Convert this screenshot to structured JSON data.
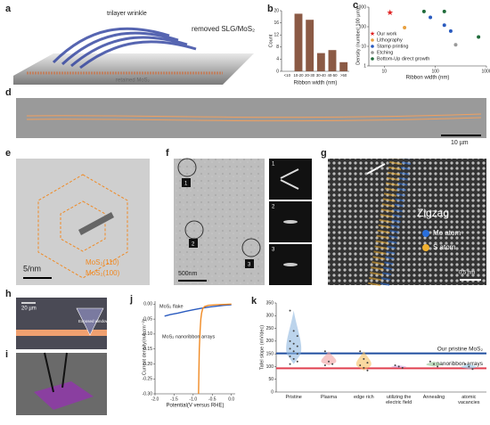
{
  "panels": {
    "a": {
      "label": "a",
      "texts": [
        "trilayer wrinkle",
        "removed SLG/MoS₂",
        "retained MoS₂"
      ]
    },
    "d": {
      "label": "d",
      "scale": "10 µm"
    },
    "e": {
      "label": "e",
      "scale": "5/nm",
      "legend": [
        "MoS₂(110)",
        "MoS₂(100)"
      ]
    },
    "f": {
      "label": "f",
      "scale": "500nm",
      "markers": [
        "1",
        "2",
        "3"
      ],
      "insets": [
        "1",
        "2",
        "3"
      ]
    },
    "g": {
      "label": "g",
      "texts": [
        "Zigzag",
        "Mo atom",
        "S atom"
      ],
      "scale": "0.5 nm"
    },
    "h": {
      "label": "h",
      "scale": "20 µm",
      "window": "Exposed window"
    },
    "i": {
      "label": "i"
    }
  },
  "chart_data": [
    {
      "type": "bar",
      "label": "b",
      "ylabel": "Count",
      "xlabel": "Ribbon width (nm)",
      "categories": [
        "<10",
        "10-20",
        "20-30",
        "30-40",
        "40-50",
        ">50"
      ],
      "values": [
        0,
        19,
        17,
        6,
        7,
        3
      ],
      "color": "#8b5a45",
      "ylim": [
        0,
        20
      ],
      "yticks": [
        0,
        4,
        8,
        12,
        16,
        20
      ]
    },
    {
      "type": "scatter",
      "label": "c",
      "ylabel": "Density (number/ 100 µm)",
      "xlabel": "Ribbon width (nm)",
      "log_x": true,
      "log_y": true,
      "xlim": [
        5,
        1000
      ],
      "ylim": [
        1,
        1000
      ],
      "xticks": [
        10,
        100,
        1000
      ],
      "yticks": [
        1,
        10,
        100,
        1000
      ],
      "legend": "left",
      "series": [
        {
          "name": "Our work",
          "color": "#e02020",
          "marker": "star",
          "x": [
            13
          ],
          "values": [
            500
          ]
        },
        {
          "name": "Lithography",
          "color": "#e8a040",
          "marker": "circle",
          "x": [
            25
          ],
          "values": [
            90
          ]
        },
        {
          "name": "Stamp printing",
          "color": "#2a5bbf",
          "marker": "circle",
          "x": [
            80,
            150,
            200
          ],
          "values": [
            300,
            120,
            60
          ]
        },
        {
          "name": "Etching",
          "color": "#999999",
          "marker": "circle",
          "x": [
            250
          ],
          "values": [
            12
          ]
        },
        {
          "name": "Bottom-Up direct growth",
          "color": "#1f6b3a",
          "marker": "circle",
          "x": [
            60,
            150,
            700
          ],
          "values": [
            600,
            600,
            30
          ]
        }
      ]
    },
    {
      "type": "line",
      "label": "j",
      "ylabel": "Current density(mA cm⁻²)",
      "xlabel": "Potential(V versus RHE)",
      "xlim": [
        -2.0,
        0.1
      ],
      "ylim": [
        -0.3,
        0.01
      ],
      "xticks": [
        {
          "value": -2.0,
          "label": "-2.0"
        },
        {
          "value": -1.5,
          "label": "-1.5"
        },
        {
          "value": -1.0,
          "label": "-1.0"
        },
        {
          "value": -0.5,
          "label": "-0.5"
        },
        {
          "value": 0,
          "label": "0.0"
        }
      ],
      "yticks": [
        {
          "value": 0,
          "label": "0.00"
        },
        {
          "value": -0.05,
          "label": "-0.05"
        },
        {
          "value": -0.1,
          "label": "-0.10"
        },
        {
          "value": -0.15,
          "label": "-0.15"
        },
        {
          "value": -0.2,
          "label": "-0.20"
        },
        {
          "value": -0.25,
          "label": "-0.25"
        },
        {
          "value": -0.3,
          "label": "-0.30"
        }
      ],
      "series": [
        {
          "name": "MoS₂ flake",
          "color": "#2a5bbf",
          "x": [
            -1.75,
            -1.6,
            -1.4,
            -1.2,
            -1.0,
            -0.8,
            -0.6,
            -0.4,
            -0.2,
            0.0
          ],
          "values": [
            -0.04,
            -0.035,
            -0.03,
            -0.024,
            -0.019,
            -0.014,
            -0.01,
            -0.007,
            -0.004,
            -0.002
          ]
        },
        {
          "name": "MoS₂ nanoribbon arrays",
          "color": "#f08a24",
          "x": [
            -0.86,
            -0.85,
            -0.84,
            -0.82,
            -0.8,
            -0.78,
            -0.75,
            -0.7,
            -0.6,
            -0.4,
            -0.2,
            0.0
          ],
          "values": [
            -0.3,
            -0.22,
            -0.15,
            -0.09,
            -0.05,
            -0.03,
            -0.015,
            -0.008,
            -0.004,
            -0.002,
            -0.001,
            0.0
          ]
        }
      ]
    },
    {
      "type": "violin",
      "label": "k",
      "ylabel": "Tafel slope (mV/dec)",
      "ylim": [
        0,
        350
      ],
      "yticks": [
        0,
        50,
        100,
        150,
        200,
        250,
        300,
        350
      ],
      "categories": [
        "Pristine",
        "Plasma",
        "edge rich",
        "utilizing the electric field",
        "Annealing",
        "atomic vacancies"
      ],
      "colors": [
        "#8fb8e0",
        "#f2a0a0",
        "#f5c060",
        "#c9a0e0",
        "#8fc08f",
        "#90c8e8"
      ],
      "groups": [
        [
          320,
          240,
          220,
          200,
          190,
          180,
          170,
          160,
          150,
          140,
          130,
          120,
          110
        ],
        [
          160,
          120,
          110,
          105
        ],
        [
          160,
          130,
          115,
          105,
          95,
          85
        ],
        [
          105,
          100,
          95
        ],
        [
          120,
          110,
          100
        ],
        [
          110,
          100,
          90
        ]
      ],
      "lines": [
        {
          "name": "Our pristine MoS₂",
          "value": 152,
          "color": "#1f4e9f"
        },
        {
          "name": "nanoribbon arrays",
          "value": 93,
          "color": "#e04050"
        }
      ]
    }
  ]
}
